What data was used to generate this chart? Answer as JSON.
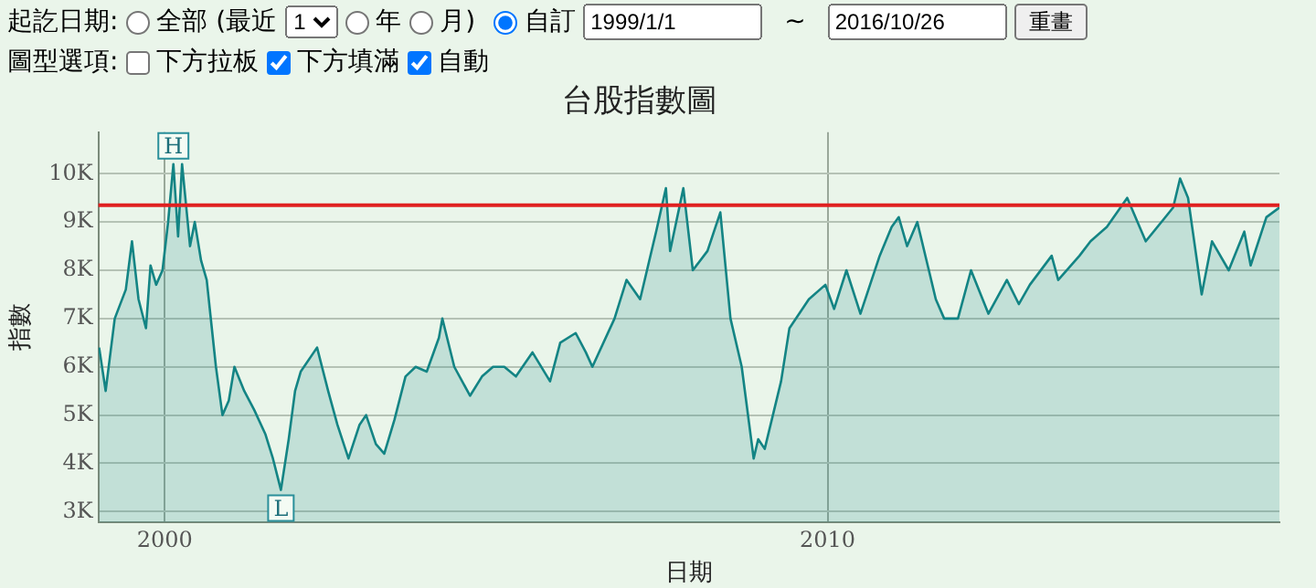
{
  "chart_data": {
    "type": "area",
    "title": "台股指數圖",
    "xlabel": "日期",
    "ylabel": "指數",
    "x": [
      "1999-01-05",
      "1999-02-10",
      "1999-04-01",
      "1999-06-01",
      "1999-07-05",
      "1999-08-10",
      "1999-09-20",
      "1999-10-15",
      "1999-11-15",
      "1999-12-20",
      "2000-01-20",
      "2000-02-18",
      "2000-03-15",
      "2000-04-06",
      "2000-05-20",
      "2000-06-15",
      "2000-07-20",
      "2000-08-20",
      "2000-10-10",
      "2000-11-15",
      "2000-12-20",
      "2001-01-20",
      "2001-03-15",
      "2001-05-10",
      "2001-07-10",
      "2001-08-20",
      "2001-10-03",
      "2001-11-15",
      "2001-12-20",
      "2002-01-20",
      "2002-04-20",
      "2002-06-20",
      "2002-08-10",
      "2002-10-10",
      "2002-12-10",
      "2003-01-15",
      "2003-03-10",
      "2003-04-25",
      "2003-06-20",
      "2003-08-20",
      "2003-10-15",
      "2003-12-15",
      "2004-02-20",
      "2004-03-10",
      "2004-05-15",
      "2004-08-10",
      "2004-10-15",
      "2004-12-15",
      "2005-02-15",
      "2005-04-20",
      "2005-07-20",
      "2005-10-25",
      "2005-12-20",
      "2006-03-15",
      "2006-05-10",
      "2006-06-15",
      "2006-10-15",
      "2006-12-20",
      "2007-03-05",
      "2007-06-01",
      "2007-07-25",
      "2007-08-17",
      "2007-10-29",
      "2007-12-20",
      "2008-03-10",
      "2008-05-20",
      "2008-07-15",
      "2008-09-15",
      "2008-11-20",
      "2008-12-15",
      "2009-01-20",
      "2009-04-20",
      "2009-06-05",
      "2009-09-20",
      "2009-12-20",
      "2010-02-06",
      "2010-04-15",
      "2010-07-01",
      "2010-10-15",
      "2010-12-20",
      "2011-01-28",
      "2011-03-15",
      "2011-05-10",
      "2011-08-20",
      "2011-10-05",
      "2011-12-20",
      "2012-03-01",
      "2012-06-05",
      "2012-09-15",
      "2012-11-20",
      "2013-01-20",
      "2013-05-20",
      "2013-06-25",
      "2013-10-20",
      "2013-12-20",
      "2014-03-20",
      "2014-07-10",
      "2014-10-20",
      "2015-03-20",
      "2015-04-27",
      "2015-06-10",
      "2015-08-24",
      "2015-10-20",
      "2016-01-20",
      "2016-04-15",
      "2016-05-20",
      "2016-08-15",
      "2016-10-26"
    ],
    "series": [
      {
        "color": "#138484",
        "values": [
          6400,
          5500,
          7000,
          7600,
          8600,
          7400,
          6800,
          8100,
          7700,
          8000,
          9000,
          10200,
          8700,
          10200,
          8500,
          9000,
          8200,
          7800,
          6000,
          5000,
          5300,
          6000,
          5500,
          5100,
          4600,
          4100,
          3450,
          4500,
          5500,
          5900,
          6400,
          5500,
          4800,
          4100,
          4800,
          5000,
          4400,
          4200,
          4900,
          5800,
          6000,
          5900,
          6600,
          7000,
          6000,
          5400,
          5800,
          6000,
          6000,
          5800,
          6300,
          5700,
          6500,
          6700,
          6300,
          6000,
          7000,
          7800,
          7400,
          8800,
          9700,
          8400,
          9700,
          8000,
          8400,
          9200,
          7000,
          6000,
          4100,
          4500,
          4300,
          5700,
          6800,
          7400,
          7700,
          7200,
          8000,
          7100,
          8300,
          8900,
          9100,
          8500,
          9000,
          7400,
          7000,
          7000,
          8000,
          7100,
          7800,
          7300,
          7700,
          8300,
          7800,
          8300,
          8600,
          8900,
          9500,
          8600,
          9300,
          9900,
          9500,
          7500,
          8600,
          8000,
          8800,
          8100,
          9100,
          9300
        ]
      }
    ],
    "xlim": [
      "1999-01-01",
      "2016-10-26"
    ],
    "xticks": [
      {
        "value": "2000-01-01",
        "label": "2000"
      },
      {
        "value": "2010-01-01",
        "label": "2010"
      }
    ],
    "ylim": [
      2780,
      10860
    ],
    "yticks": [
      {
        "value": 3000,
        "label": "3K"
      },
      {
        "value": 4000,
        "label": "4K"
      },
      {
        "value": 5000,
        "label": "5K"
      },
      {
        "value": 6000,
        "label": "6K"
      },
      {
        "value": 7000,
        "label": "7K"
      },
      {
        "value": 8000,
        "label": "8K"
      },
      {
        "value": 9000,
        "label": "9K"
      },
      {
        "value": 10000,
        "label": "10K"
      }
    ],
    "grid": true,
    "legend": false,
    "ref_lines": [
      {
        "axis": "y",
        "value": 9350,
        "color": "#e02020"
      }
    ],
    "annotations": [
      "起訖日期:",
      "全部 (最近",
      "1",
      "年",
      "月)",
      "自訂",
      "1999/1/1",
      "~",
      "2016/10/26",
      "重畫",
      "圖型選項:",
      "下方拉板",
      "下方填滿",
      "自動",
      {
        "text": "H",
        "x": "2000-02-18",
        "y": 10200
      },
      {
        "text": "L",
        "x": "2001-10-03",
        "y": 3450
      }
    ]
  }
}
